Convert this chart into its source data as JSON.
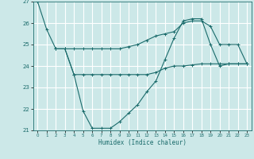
{
  "title": "",
  "xlabel": "Humidex (Indice chaleur)",
  "ylabel": "",
  "background_color": "#cce8e8",
  "grid_color": "#ffffff",
  "line_color": "#1a6b6b",
  "xlim": [
    -0.5,
    23.5
  ],
  "ylim": [
    21,
    27
  ],
  "xticks": [
    0,
    1,
    2,
    3,
    4,
    5,
    6,
    7,
    8,
    9,
    10,
    11,
    12,
    13,
    14,
    15,
    16,
    17,
    18,
    19,
    20,
    21,
    22,
    23
  ],
  "yticks": [
    21,
    22,
    23,
    24,
    25,
    26,
    27
  ],
  "line1_x": [
    0,
    1,
    2,
    3,
    4,
    5,
    6,
    7,
    8,
    9,
    10,
    11,
    12,
    13,
    14,
    15,
    16,
    17,
    18,
    19,
    20,
    21,
    22,
    23
  ],
  "line1_y": [
    27,
    25.7,
    24.8,
    24.8,
    23.6,
    21.9,
    21.1,
    21.1,
    21.1,
    21.4,
    21.8,
    22.2,
    22.8,
    23.3,
    24.3,
    25.3,
    26.1,
    26.2,
    26.2,
    25.0,
    24.0,
    24.1,
    24.1,
    24.1
  ],
  "line2_x": [
    2,
    3,
    4,
    5,
    6,
    7,
    8,
    9,
    10,
    11,
    12,
    13,
    14,
    15,
    16,
    17,
    18,
    19,
    20,
    21,
    22,
    23
  ],
  "line2_y": [
    24.8,
    24.8,
    24.8,
    24.8,
    24.8,
    24.8,
    24.8,
    24.8,
    24.9,
    25.0,
    25.2,
    25.4,
    25.5,
    25.6,
    26.0,
    26.1,
    26.1,
    25.85,
    25.0,
    25.0,
    25.0,
    24.1
  ],
  "line3_x": [
    2,
    3,
    4,
    5,
    6,
    7,
    8,
    9,
    10,
    11,
    12,
    13,
    14,
    15,
    16,
    17,
    18,
    19,
    20,
    21,
    22,
    23
  ],
  "line3_y": [
    24.8,
    24.8,
    23.6,
    23.6,
    23.6,
    23.6,
    23.6,
    23.6,
    23.6,
    23.6,
    23.6,
    23.7,
    23.9,
    24.0,
    24.0,
    24.05,
    24.1,
    24.1,
    24.1,
    24.1,
    24.1,
    24.1
  ]
}
